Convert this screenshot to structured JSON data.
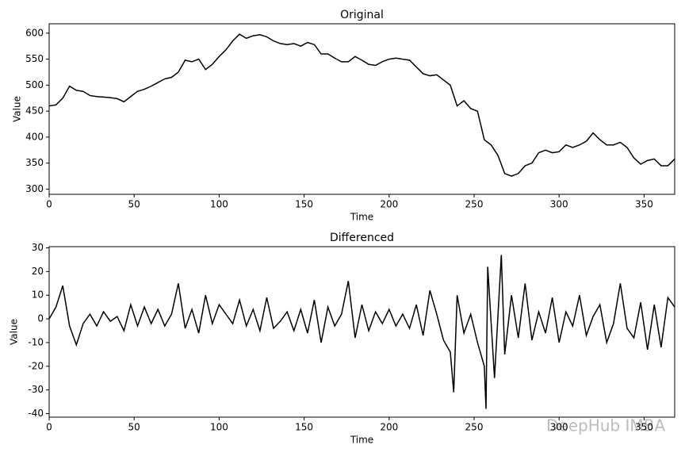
{
  "chart_data": [
    {
      "type": "line",
      "title": "Original",
      "xlabel": "Time",
      "ylabel": "Value",
      "color": "#000000",
      "xlim": [
        0,
        368
      ],
      "ylim": [
        290,
        618
      ],
      "xticks": [
        0,
        50,
        100,
        150,
        200,
        250,
        300,
        350
      ],
      "yticks": [
        300,
        350,
        400,
        450,
        500,
        550,
        600
      ],
      "x": [
        0,
        4,
        8,
        12,
        16,
        20,
        24,
        28,
        32,
        36,
        40,
        44,
        48,
        52,
        56,
        60,
        64,
        68,
        72,
        76,
        80,
        84,
        88,
        92,
        96,
        100,
        104,
        108,
        112,
        116,
        120,
        124,
        128,
        132,
        136,
        140,
        144,
        148,
        152,
        156,
        160,
        164,
        168,
        172,
        176,
        180,
        184,
        188,
        192,
        196,
        200,
        204,
        208,
        212,
        216,
        220,
        224,
        228,
        232,
        236,
        240,
        244,
        248,
        252,
        256,
        260,
        264,
        268,
        272,
        276,
        280,
        284,
        288,
        292,
        296,
        300,
        304,
        308,
        312,
        316,
        320,
        324,
        328,
        332,
        336,
        340,
        344,
        348,
        352,
        356,
        360,
        364,
        368
      ],
      "values": [
        460,
        462,
        475,
        498,
        490,
        488,
        480,
        478,
        477,
        476,
        474,
        468,
        478,
        488,
        492,
        498,
        505,
        512,
        515,
        525,
        548,
        545,
        550,
        530,
        540,
        555,
        568,
        585,
        598,
        590,
        595,
        597,
        593,
        585,
        580,
        578,
        580,
        575,
        582,
        578,
        560,
        560,
        552,
        545,
        545,
        555,
        548,
        540,
        538,
        545,
        550,
        552,
        550,
        548,
        535,
        522,
        518,
        520,
        510,
        500,
        460,
        470,
        455,
        450,
        395,
        385,
        365,
        330,
        325,
        330,
        345,
        350,
        370,
        375,
        370,
        372,
        385,
        380,
        385,
        392,
        408,
        395,
        385,
        385,
        390,
        380,
        360,
        348,
        355,
        358,
        345,
        345,
        358
      ]
    },
    {
      "type": "line",
      "title": "Differenced",
      "xlabel": "Time",
      "ylabel": "Value",
      "color": "#000000",
      "xlim": [
        0,
        368
      ],
      "ylim": [
        -41.5,
        30.5
      ],
      "xticks": [
        0,
        50,
        100,
        150,
        200,
        250,
        300,
        350
      ],
      "yticks": [
        -40,
        -30,
        -20,
        -10,
        0,
        10,
        20,
        30
      ],
      "x": [
        0,
        4,
        8,
        12,
        16,
        20,
        24,
        28,
        32,
        36,
        40,
        44,
        48,
        52,
        56,
        60,
        64,
        68,
        72,
        76,
        80,
        84,
        88,
        92,
        96,
        100,
        104,
        108,
        112,
        116,
        120,
        124,
        128,
        132,
        136,
        140,
        144,
        148,
        152,
        156,
        160,
        164,
        168,
        172,
        176,
        180,
        184,
        188,
        192,
        196,
        200,
        204,
        208,
        212,
        216,
        220,
        224,
        228,
        232,
        236,
        238,
        240,
        244,
        248,
        252,
        256,
        257,
        258,
        262,
        266,
        268,
        272,
        276,
        280,
        284,
        288,
        292,
        296,
        300,
        304,
        308,
        312,
        316,
        320,
        324,
        328,
        332,
        336,
        340,
        344,
        348,
        352,
        356,
        360,
        364,
        368
      ],
      "values": [
        0,
        5,
        14,
        -3,
        -11,
        -2,
        2,
        -3,
        3,
        -1,
        1,
        -5,
        6,
        -3,
        5,
        -2,
        4,
        -3,
        2,
        15,
        -4,
        4,
        -6,
        10,
        -2,
        6,
        2,
        -2,
        8,
        -3,
        4,
        -5,
        9,
        -4,
        -1,
        3,
        -5,
        4,
        -6,
        8,
        -10,
        5,
        -3,
        2,
        16,
        -8,
        6,
        -5,
        3,
        -2,
        4,
        -3,
        2,
        -4,
        6,
        -7,
        12,
        2,
        -9,
        -14,
        -31,
        10,
        -6,
        2,
        -10,
        -20,
        -38,
        22,
        -25,
        27,
        -15,
        10,
        -8,
        15,
        -9,
        3,
        -6,
        9,
        -10,
        3,
        -3,
        10,
        -7,
        1,
        6,
        -10,
        -2,
        15,
        -4,
        -8,
        7,
        -13,
        6,
        -12,
        9,
        5
      ]
    }
  ],
  "watermark": "DeepHub IMBA"
}
